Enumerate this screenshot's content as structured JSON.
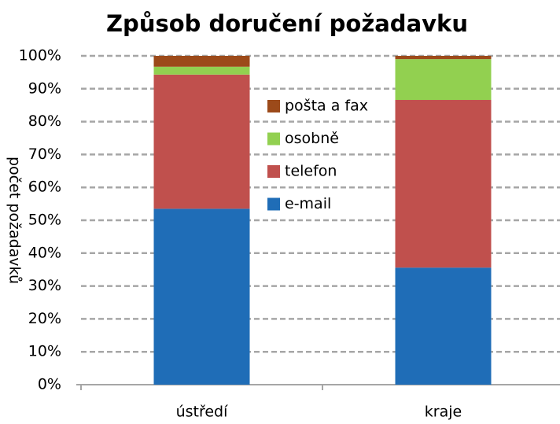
{
  "chart_data": {
    "type": "stacked_bar",
    "title": "Způsob doručení požadavku",
    "y_label": "počet požadavků",
    "categories": [
      "ústředí",
      "kraje"
    ],
    "series": [
      {
        "name": "e-mail",
        "color": "#1f6db7",
        "values": [
          53.5,
          35.6
        ]
      },
      {
        "name": "telefon",
        "color": "#c0504d",
        "values": [
          40.8,
          51.0
        ]
      },
      {
        "name": "osobně",
        "color": "#92d050",
        "values": [
          2.4,
          12.4
        ]
      },
      {
        "name": "pošta a fax",
        "color": "#9c4a1a",
        "values": [
          3.3,
          1.0
        ]
      }
    ],
    "ylim": [
      0,
      100
    ],
    "yticks": [
      {
        "value": 0,
        "label": "0%"
      },
      {
        "value": 10,
        "label": "10%"
      },
      {
        "value": 20,
        "label": "20%"
      },
      {
        "value": 30,
        "label": "30%"
      },
      {
        "value": 40,
        "label": "40%"
      },
      {
        "value": 50,
        "label": "50%"
      },
      {
        "value": 60,
        "label": "60%"
      },
      {
        "value": 70,
        "label": "70%"
      },
      {
        "value": 80,
        "label": "80%"
      },
      {
        "value": 90,
        "label": "90%"
      },
      {
        "value": 100,
        "label": "100%"
      }
    ],
    "grid": true
  }
}
